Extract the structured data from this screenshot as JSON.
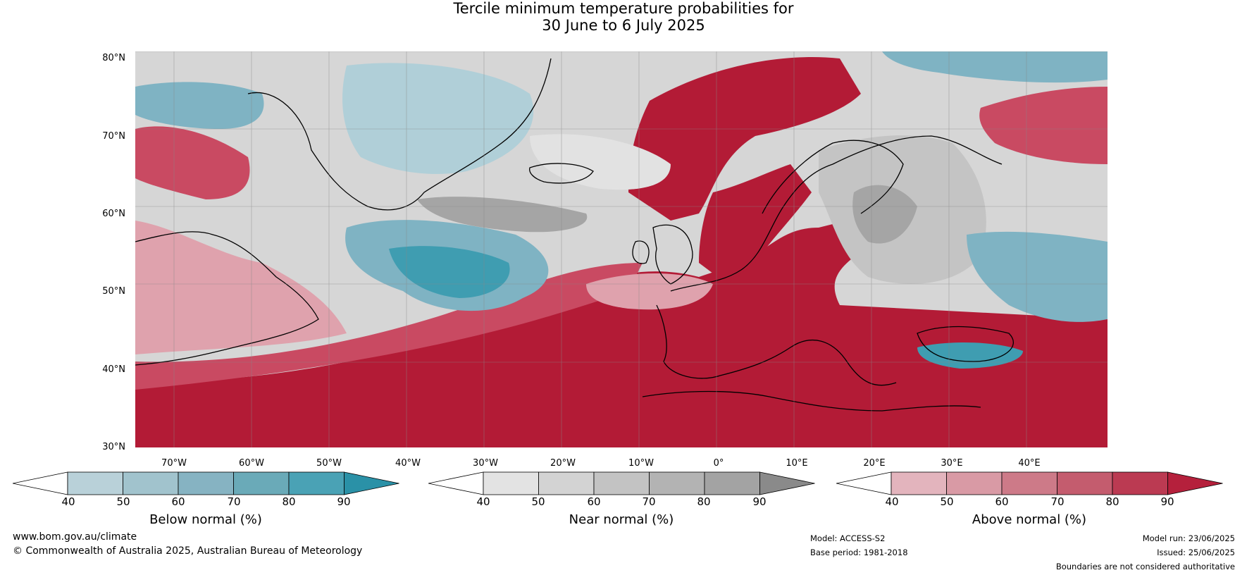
{
  "title": {
    "line1": "Tercile minimum temperature probabilities for",
    "line2": "30 June to 6 July 2025"
  },
  "latitude_labels": [
    "80°N",
    "70°N",
    "60°N",
    "50°N",
    "40°N",
    "30°N"
  ],
  "longitude_labels": [
    "70°W",
    "60°W",
    "50°W",
    "40°W",
    "30°W",
    "20°W",
    "10°W",
    "0°",
    "10°E",
    "20°E",
    "30°E",
    "40°E"
  ],
  "colorbars": [
    {
      "title": "Below normal (%)",
      "ticks": [
        "40",
        "50",
        "60",
        "70",
        "80",
        "90"
      ],
      "colors": [
        "#ffffff",
        "#b9d1d9",
        "#a1c3cd",
        "#86b3c2",
        "#6aaab8",
        "#4aa2b5",
        "#2a91a7"
      ]
    },
    {
      "title": "Near normal (%)",
      "ticks": [
        "40",
        "50",
        "60",
        "70",
        "80",
        "90"
      ],
      "colors": [
        "#ffffff",
        "#e3e3e3",
        "#d3d3d3",
        "#c3c3c3",
        "#b3b3b3",
        "#a3a3a3",
        "#8a8a8a"
      ]
    },
    {
      "title": "Above normal (%)",
      "ticks": [
        "40",
        "50",
        "60",
        "70",
        "80",
        "90"
      ],
      "colors": [
        "#ffffff",
        "#e3b4bd",
        "#d99aa5",
        "#cd7a88",
        "#c45c6e",
        "#bb3a52",
        "#b5203c"
      ]
    }
  ],
  "footer": {
    "website": "www.bom.gov.au/climate",
    "copyright": "© Commonwealth of Australia 2025, Australian Bureau of Meteorology",
    "model": "Model: ACCESS-S2",
    "base_period": "Base period: 1981-2018",
    "model_run": "Model run: 23/06/2025",
    "issued": "Issued: 25/06/2025",
    "disclaimer": "Boundaries are not considered authoritative"
  },
  "map_colors": {
    "land_line": "#000000",
    "border_line": "#808080",
    "grid_line": "#888888",
    "red_strong": "#b31b36",
    "red_mid": "#c94a62",
    "red_light": "#dfa2ad",
    "blue_strong": "#3f9db1",
    "blue_mid": "#7fb3c3",
    "blue_light": "#b0cfd8",
    "grey_dark": "#a5a5a5",
    "grey_mid": "#c4c4c4",
    "grey_light": "#e2e2e2"
  }
}
